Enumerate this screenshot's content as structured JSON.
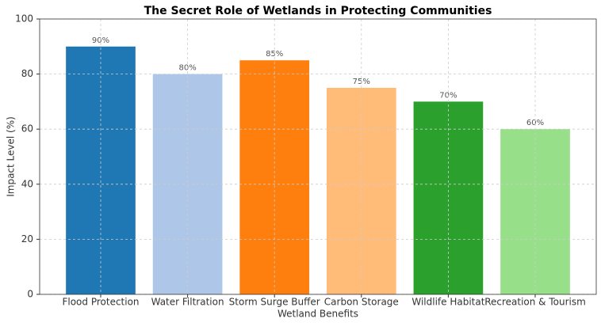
{
  "chart_data": {
    "type": "bar",
    "title": "The Secret Role of Wetlands in Protecting Communities",
    "xlabel": "Wetland Benefits",
    "ylabel": "Impact Level (%)",
    "categories": [
      "Flood Protection",
      "Water Filtration",
      "Storm Surge Buffer",
      "Carbon Storage",
      "Wildlife Habitat",
      "Recreation & Tourism"
    ],
    "values": [
      90,
      80,
      85,
      75,
      70,
      60
    ],
    "value_labels": [
      "90%",
      "80%",
      "85%",
      "75%",
      "70%",
      "60%"
    ],
    "colors": [
      "#1f77b4",
      "#aec7e8",
      "#ff7f0e",
      "#ffbb78",
      "#2ca02c",
      "#98df8a"
    ],
    "ylim": [
      0,
      100
    ],
    "yticks": [
      0,
      20,
      40,
      60,
      80,
      100
    ],
    "grid": true
  }
}
